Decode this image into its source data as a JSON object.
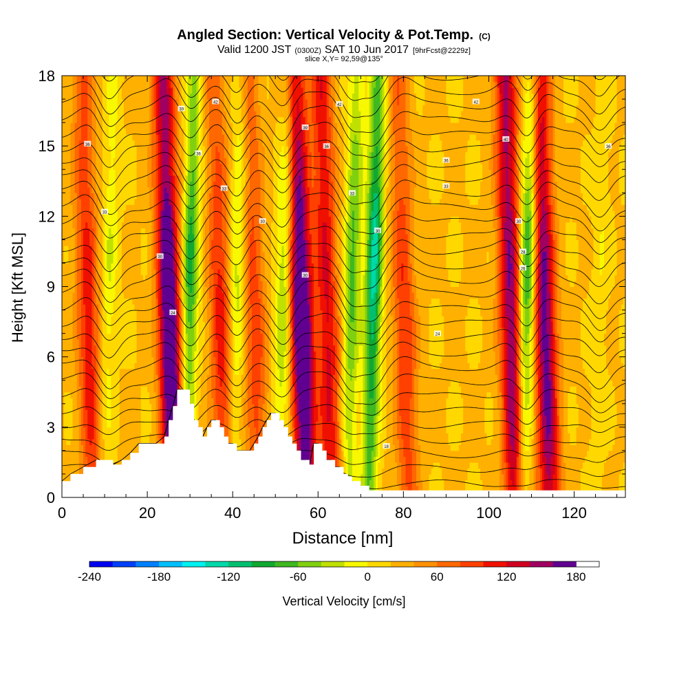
{
  "title": {
    "main": "Angled Section: Vertical Velocity & Pot.Temp.",
    "main_unit": "(C)",
    "valid_prefix": "Valid 1200 JST",
    "valid_small": "(0300Z)",
    "valid_date": "SAT 10 Jun 2017",
    "valid_fcst": "[9hrFcst@2229z]",
    "slice": "slice X,Y= 92,59@135°"
  },
  "chart_data": {
    "type": "heatmap",
    "xlabel": "Distance [nm]",
    "ylabel": "Height [Kft MSL]",
    "xlim": [
      0,
      132
    ],
    "ylim": [
      0,
      18
    ],
    "x_ticks": [
      0,
      20,
      40,
      60,
      80,
      100,
      120
    ],
    "y_ticks": [
      0,
      3,
      6,
      9,
      12,
      15,
      18
    ],
    "colorbar": {
      "label": "Vertical Velocity [cm/s]",
      "range": [
        -240,
        200
      ],
      "step": 20,
      "tick_values": [
        -240,
        -180,
        -120,
        -60,
        0,
        60,
        120,
        180
      ],
      "colors": [
        "#0000f0",
        "#0040f8",
        "#0080ff",
        "#00c0ff",
        "#00f0f0",
        "#00d8a8",
        "#00c070",
        "#10a830",
        "#40b820",
        "#80d010",
        "#c0e000",
        "#f8f800",
        "#ffd800",
        "#ffb000",
        "#ff9000",
        "#ff6800",
        "#ff4000",
        "#f01000",
        "#d00020",
        "#a00060",
        "#600090"
      ]
    },
    "updrafts": [
      {
        "x": 6,
        "min": 60,
        "max": 90
      },
      {
        "x": 25,
        "min": 120,
        "max": 190
      },
      {
        "x": 37,
        "min": 50,
        "max": 90
      },
      {
        "x": 45,
        "min": 50,
        "max": 70
      },
      {
        "x": 56,
        "min": 110,
        "max": 200
      },
      {
        "x": 62,
        "min": 90,
        "max": 100
      },
      {
        "x": 80,
        "min": 50,
        "max": 80
      },
      {
        "x": 105,
        "min": 120,
        "max": 140
      },
      {
        "x": 113,
        "min": 110,
        "max": 150
      }
    ],
    "downdrafts": [
      {
        "x": 11,
        "min": -40
      },
      {
        "x": 30,
        "min": -110
      },
      {
        "x": 41,
        "min": -60
      },
      {
        "x": 52,
        "min": -70
      },
      {
        "x": 68,
        "min": -90
      },
      {
        "x": 73,
        "min": -150
      },
      {
        "x": 109,
        "min": -120
      },
      {
        "x": 126,
        "min": -20
      }
    ],
    "terrain_x": [
      0,
      2,
      5,
      8,
      12,
      14,
      16,
      18,
      20,
      22,
      24,
      25,
      26,
      27,
      28,
      30,
      31,
      32,
      33,
      34,
      35,
      36,
      37,
      38,
      39,
      40,
      41,
      42,
      43,
      44,
      45,
      46,
      47,
      48,
      49,
      50,
      51,
      52,
      53,
      54,
      55,
      56,
      57,
      58,
      59,
      60,
      61,
      62,
      63,
      64,
      65,
      66,
      67,
      68,
      70,
      72,
      132
    ],
    "terrain_y": [
      0.7,
      1.0,
      1.3,
      1.6,
      1.4,
      1.6,
      1.9,
      2.3,
      2.3,
      2.3,
      2.6,
      3.3,
      3.9,
      4.6,
      4.6,
      4.0,
      3.3,
      3.0,
      2.6,
      3.0,
      3.3,
      3.3,
      3.0,
      2.6,
      2.3,
      2.3,
      2.0,
      2.0,
      2.0,
      2.0,
      2.3,
      2.6,
      3.0,
      3.3,
      3.6,
      3.6,
      3.3,
      3.0,
      2.6,
      2.3,
      2.0,
      1.6,
      1.6,
      1.4,
      2.3,
      2.3,
      2.0,
      1.6,
      1.6,
      1.3,
      1.3,
      1.0,
      0.9,
      0.7,
      0.5,
      0.3,
      0.3
    ],
    "isentropes": {
      "count": 30,
      "labels": [
        {
          "x": 6,
          "y": 15.1,
          "text": "36"
        },
        {
          "x": 10,
          "y": 12.2,
          "text": "33"
        },
        {
          "x": 23,
          "y": 10.3,
          "text": "30"
        },
        {
          "x": 26,
          "y": 7.9,
          "text": "24"
        },
        {
          "x": 28,
          "y": 16.6,
          "text": "39"
        },
        {
          "x": 32,
          "y": 14.7,
          "text": "36"
        },
        {
          "x": 36,
          "y": 16.9,
          "text": "42"
        },
        {
          "x": 38,
          "y": 13.2,
          "text": "33"
        },
        {
          "x": 47,
          "y": 11.8,
          "text": "30"
        },
        {
          "x": 57,
          "y": 15.8,
          "text": "39"
        },
        {
          "x": 57,
          "y": 9.5,
          "text": "30"
        },
        {
          "x": 62,
          "y": 15.0,
          "text": "36"
        },
        {
          "x": 65,
          "y": 16.8,
          "text": "42"
        },
        {
          "x": 68,
          "y": 13.0,
          "text": "33"
        },
        {
          "x": 74,
          "y": 11.4,
          "text": "30"
        },
        {
          "x": 76,
          "y": 2.2,
          "text": "18"
        },
        {
          "x": 88,
          "y": 7.0,
          "text": "24"
        },
        {
          "x": 90,
          "y": 14.4,
          "text": "36"
        },
        {
          "x": 90,
          "y": 13.3,
          "text": "33"
        },
        {
          "x": 97,
          "y": 16.9,
          "text": "42"
        },
        {
          "x": 104,
          "y": 15.3,
          "text": "40"
        },
        {
          "x": 107,
          "y": 11.8,
          "text": "30"
        },
        {
          "x": 108,
          "y": 10.5,
          "text": "28"
        },
        {
          "x": 108,
          "y": 9.8,
          "text": "26"
        },
        {
          "x": 128,
          "y": 15.0,
          "text": "36"
        }
      ]
    }
  }
}
